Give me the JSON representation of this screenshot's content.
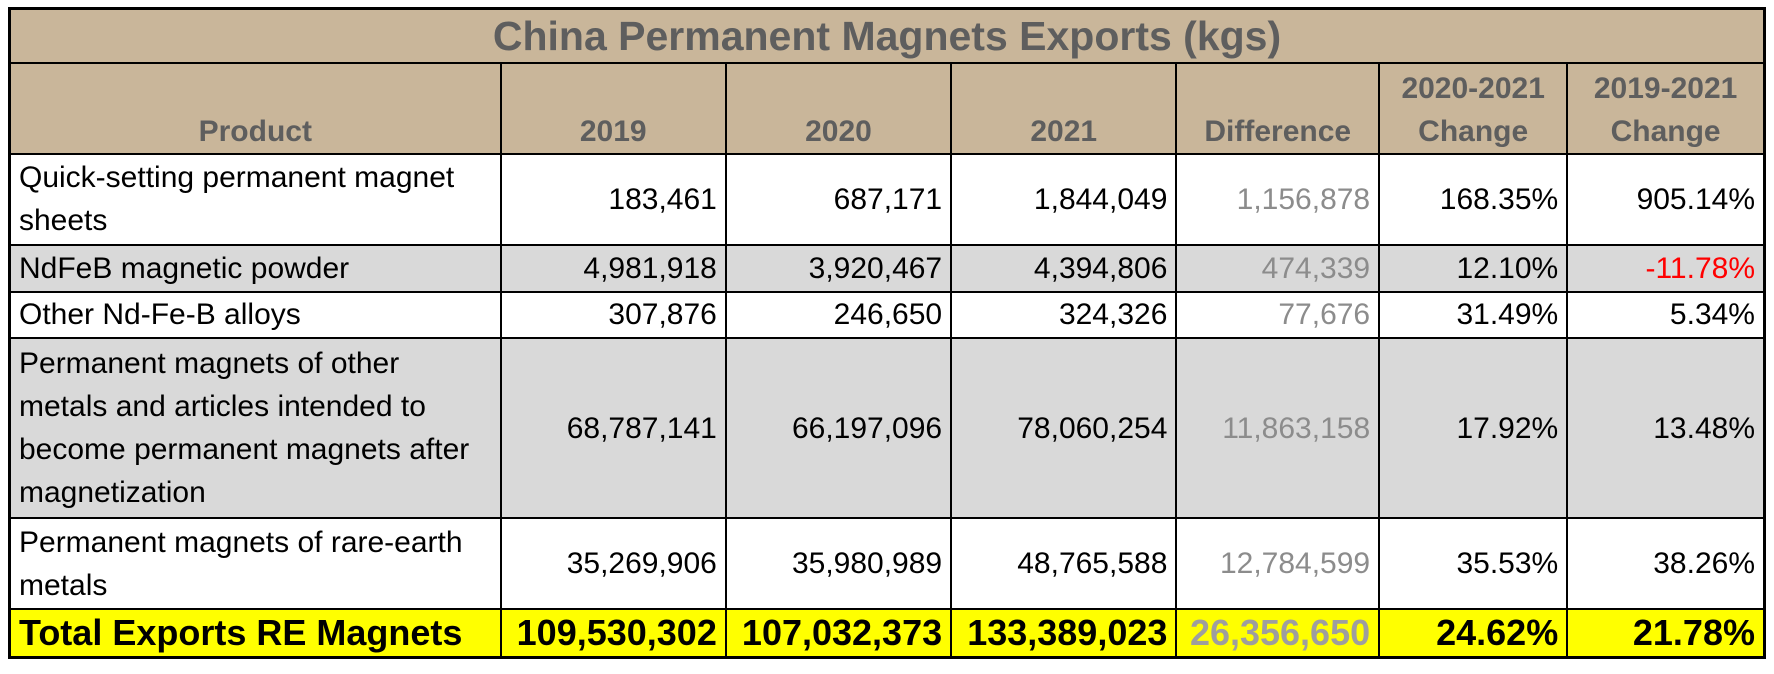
{
  "table": {
    "title": "China Permanent Magnets Exports (kgs)",
    "headers": {
      "product": "Product",
      "y2019": "2019",
      "y2020": "2020",
      "y2021": "2021",
      "difference": "Difference",
      "change_2020_2021_l1": "2020-2021",
      "change_2020_2021_l2": "Change",
      "change_2019_2021_l1": "2019-2021",
      "change_2019_2021_l2": "Change"
    },
    "rows": [
      {
        "product": "Quick-setting permanent magnet sheets",
        "y2019": "183,461",
        "y2020": "687,171",
        "y2021": "1,844,049",
        "difference": "1,156,878",
        "change_2020_2021": "168.35%",
        "change_2019_2021": "905.14%"
      },
      {
        "product": "NdFeB magnetic powder",
        "y2019": "4,981,918",
        "y2020": "3,920,467",
        "y2021": "4,394,806",
        "difference": "474,339",
        "change_2020_2021": "12.10%",
        "change_2019_2021": "-11.78%"
      },
      {
        "product": "Other Nd-Fe-B alloys",
        "y2019": "307,876",
        "y2020": "246,650",
        "y2021": "324,326",
        "difference": "77,676",
        "change_2020_2021": "31.49%",
        "change_2019_2021": "5.34%"
      },
      {
        "product": "Permanent magnets of other metals and articles intended to become permanent magnets after magnetization",
        "y2019": "68,787,141",
        "y2020": "66,197,096",
        "y2021": "78,060,254",
        "difference": "11,863,158",
        "change_2020_2021": "17.92%",
        "change_2019_2021": "13.48%"
      },
      {
        "product": "Permanent magnets of rare-earth metals",
        "y2019": "35,269,906",
        "y2020": "35,980,989",
        "y2021": "48,765,588",
        "difference": "12,784,599",
        "change_2020_2021": "35.53%",
        "change_2019_2021": "38.26%"
      }
    ],
    "total": {
      "product": "Total Exports RE Magnets",
      "y2019": "109,530,302",
      "y2020": "107,032,373",
      "y2021": "133,389,023",
      "difference": "26,356,650",
      "change_2020_2021": "24.62%",
      "change_2019_2021": "21.78%"
    },
    "colors": {
      "header_bg": "#c9b69a",
      "header_text": "#5e5e5e",
      "row_gray": "#d9d9d9",
      "difference_text": "#8c8c8c",
      "negative_text": "#ff0000",
      "total_bg": "#ffff00"
    }
  }
}
